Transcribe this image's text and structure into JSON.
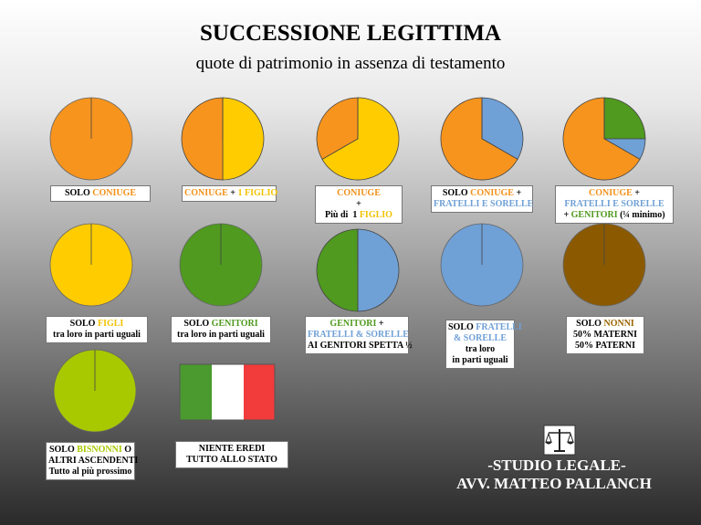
{
  "title": "SUCCESSIONE LEGITTIMA",
  "subtitle": "quote di patrimonio in assenza di testamento",
  "pies": [
    {
      "slices": [
        {
          "value": 100,
          "color": "#f7941d"
        }
      ],
      "label": [
        [
          {
            "text": "SOLO "
          },
          {
            "text": "CONIUGE",
            "color": "#f39019"
          }
        ]
      ]
    },
    {
      "slices": [
        {
          "value": 50,
          "color": "#ffcc00"
        },
        {
          "value": 50,
          "color": "#f7941d"
        }
      ],
      "label": [
        [
          {
            "text": "CONIUGE",
            "color": "#f39019"
          },
          {
            "text": " + "
          },
          {
            "text": "1 FIGLIO",
            "color": "#f2c200"
          }
        ]
      ]
    },
    {
      "slices": [
        {
          "value": 66.7,
          "color": "#ffcc00"
        },
        {
          "value": 33.3,
          "color": "#f7941d"
        }
      ],
      "label": [
        [
          {
            "text": "CONIUGE",
            "color": "#f39019"
          }
        ],
        [
          {
            "text": "+"
          }
        ],
        [
          {
            "text": "Più di  1 "
          },
          {
            "text": "FIGLIO",
            "color": "#f2c200"
          }
        ]
      ]
    },
    {
      "slices": [
        {
          "value": 33.3,
          "color": "#6fa0d6"
        },
        {
          "value": 66.7,
          "color": "#f7941d"
        }
      ],
      "label": [
        [
          {
            "text": "SOLO "
          },
          {
            "text": "CONIUGE",
            "color": "#f39019"
          },
          {
            "text": " +"
          }
        ],
        [
          {
            "text": "FRATELLI E SORELLE",
            "color": "#6fa0d6"
          }
        ]
      ]
    },
    {
      "slices": [
        {
          "value": 25,
          "color": "#4f9a1f"
        },
        {
          "value": 8.3,
          "color": "#6fa0d6"
        },
        {
          "value": 66.7,
          "color": "#f7941d"
        }
      ],
      "label": [
        [
          {
            "text": "CONIUGE",
            "color": "#f39019"
          },
          {
            "text": " +"
          }
        ],
        [
          {
            "text": "FRATELLI E SORELLE",
            "color": "#6fa0d6"
          }
        ],
        [
          {
            "text": "+ "
          },
          {
            "text": "GENITORI",
            "color": "#4f9a1f"
          },
          {
            "text": " (¼ minimo)"
          }
        ]
      ]
    },
    {
      "slices": [
        {
          "value": 100,
          "color": "#ffcc00"
        }
      ],
      "label": [
        [
          {
            "text": "SOLO "
          },
          {
            "text": "FIGLI",
            "color": "#f2c200"
          }
        ],
        [
          {
            "text": "tra loro in parti uguali"
          }
        ]
      ]
    },
    {
      "slices": [
        {
          "value": 100,
          "color": "#4f9a1f"
        }
      ],
      "label": [
        [
          {
            "text": "SOLO "
          },
          {
            "text": "GENITORI",
            "color": "#4f9a1f"
          }
        ],
        [
          {
            "text": "tra loro in parti uguali"
          }
        ]
      ]
    },
    {
      "slices": [
        {
          "value": 50,
          "color": "#6fa0d6"
        },
        {
          "value": 50,
          "color": "#4f9a1f"
        }
      ],
      "label": [
        [
          {
            "text": "GENITORI",
            "color": "#4f9a1f"
          },
          {
            "text": " +"
          }
        ],
        [
          {
            "text": "FRATELLI & SORELLE",
            "color": "#6fa0d6"
          }
        ],
        [
          {
            "text": "AI GENITORI SPETTA ½"
          }
        ]
      ]
    },
    {
      "slices": [
        {
          "value": 100,
          "color": "#6fa0d6"
        }
      ],
      "label": [
        [
          {
            "text": "SOLO "
          },
          {
            "text": "FRATELLI",
            "color": "#6fa0d6"
          }
        ],
        [
          {
            "text": "& SORELLE",
            "color": "#6fa0d6"
          }
        ],
        [
          {
            "text": "tra loro"
          }
        ],
        [
          {
            "text": "in parti uguali"
          }
        ]
      ]
    },
    {
      "slices": [
        {
          "value": 100,
          "color": "#8b5a00"
        }
      ],
      "label": [
        [
          {
            "text": "SOLO "
          },
          {
            "text": "NONNI",
            "color": "#9a6400"
          }
        ],
        [
          {
            "text": "50% MATERNI"
          }
        ],
        [
          {
            "text": "50% PATERNI"
          }
        ]
      ]
    },
    {
      "slices": [
        {
          "value": 100,
          "color": "#a8c800"
        }
      ],
      "label": [
        [
          {
            "text": "SOLO "
          },
          {
            "text": "BISNONNI",
            "color": "#a8c800"
          },
          {
            "text": " O"
          }
        ],
        [
          {
            "text": "ALTRI ASCENDENTI"
          }
        ],
        [
          {
            "text": "Tutto al più prossimo"
          }
        ]
      ]
    }
  ],
  "flag_label": [
    [
      {
        "text": "NIENTE EREDI"
      }
    ],
    [
      {
        "text": "TUTTO ALLO STATO"
      }
    ]
  ],
  "footer": {
    "line1": "-STUDIO LEGALE-",
    "line2": "AVV. MATTEO PALLANCH"
  }
}
